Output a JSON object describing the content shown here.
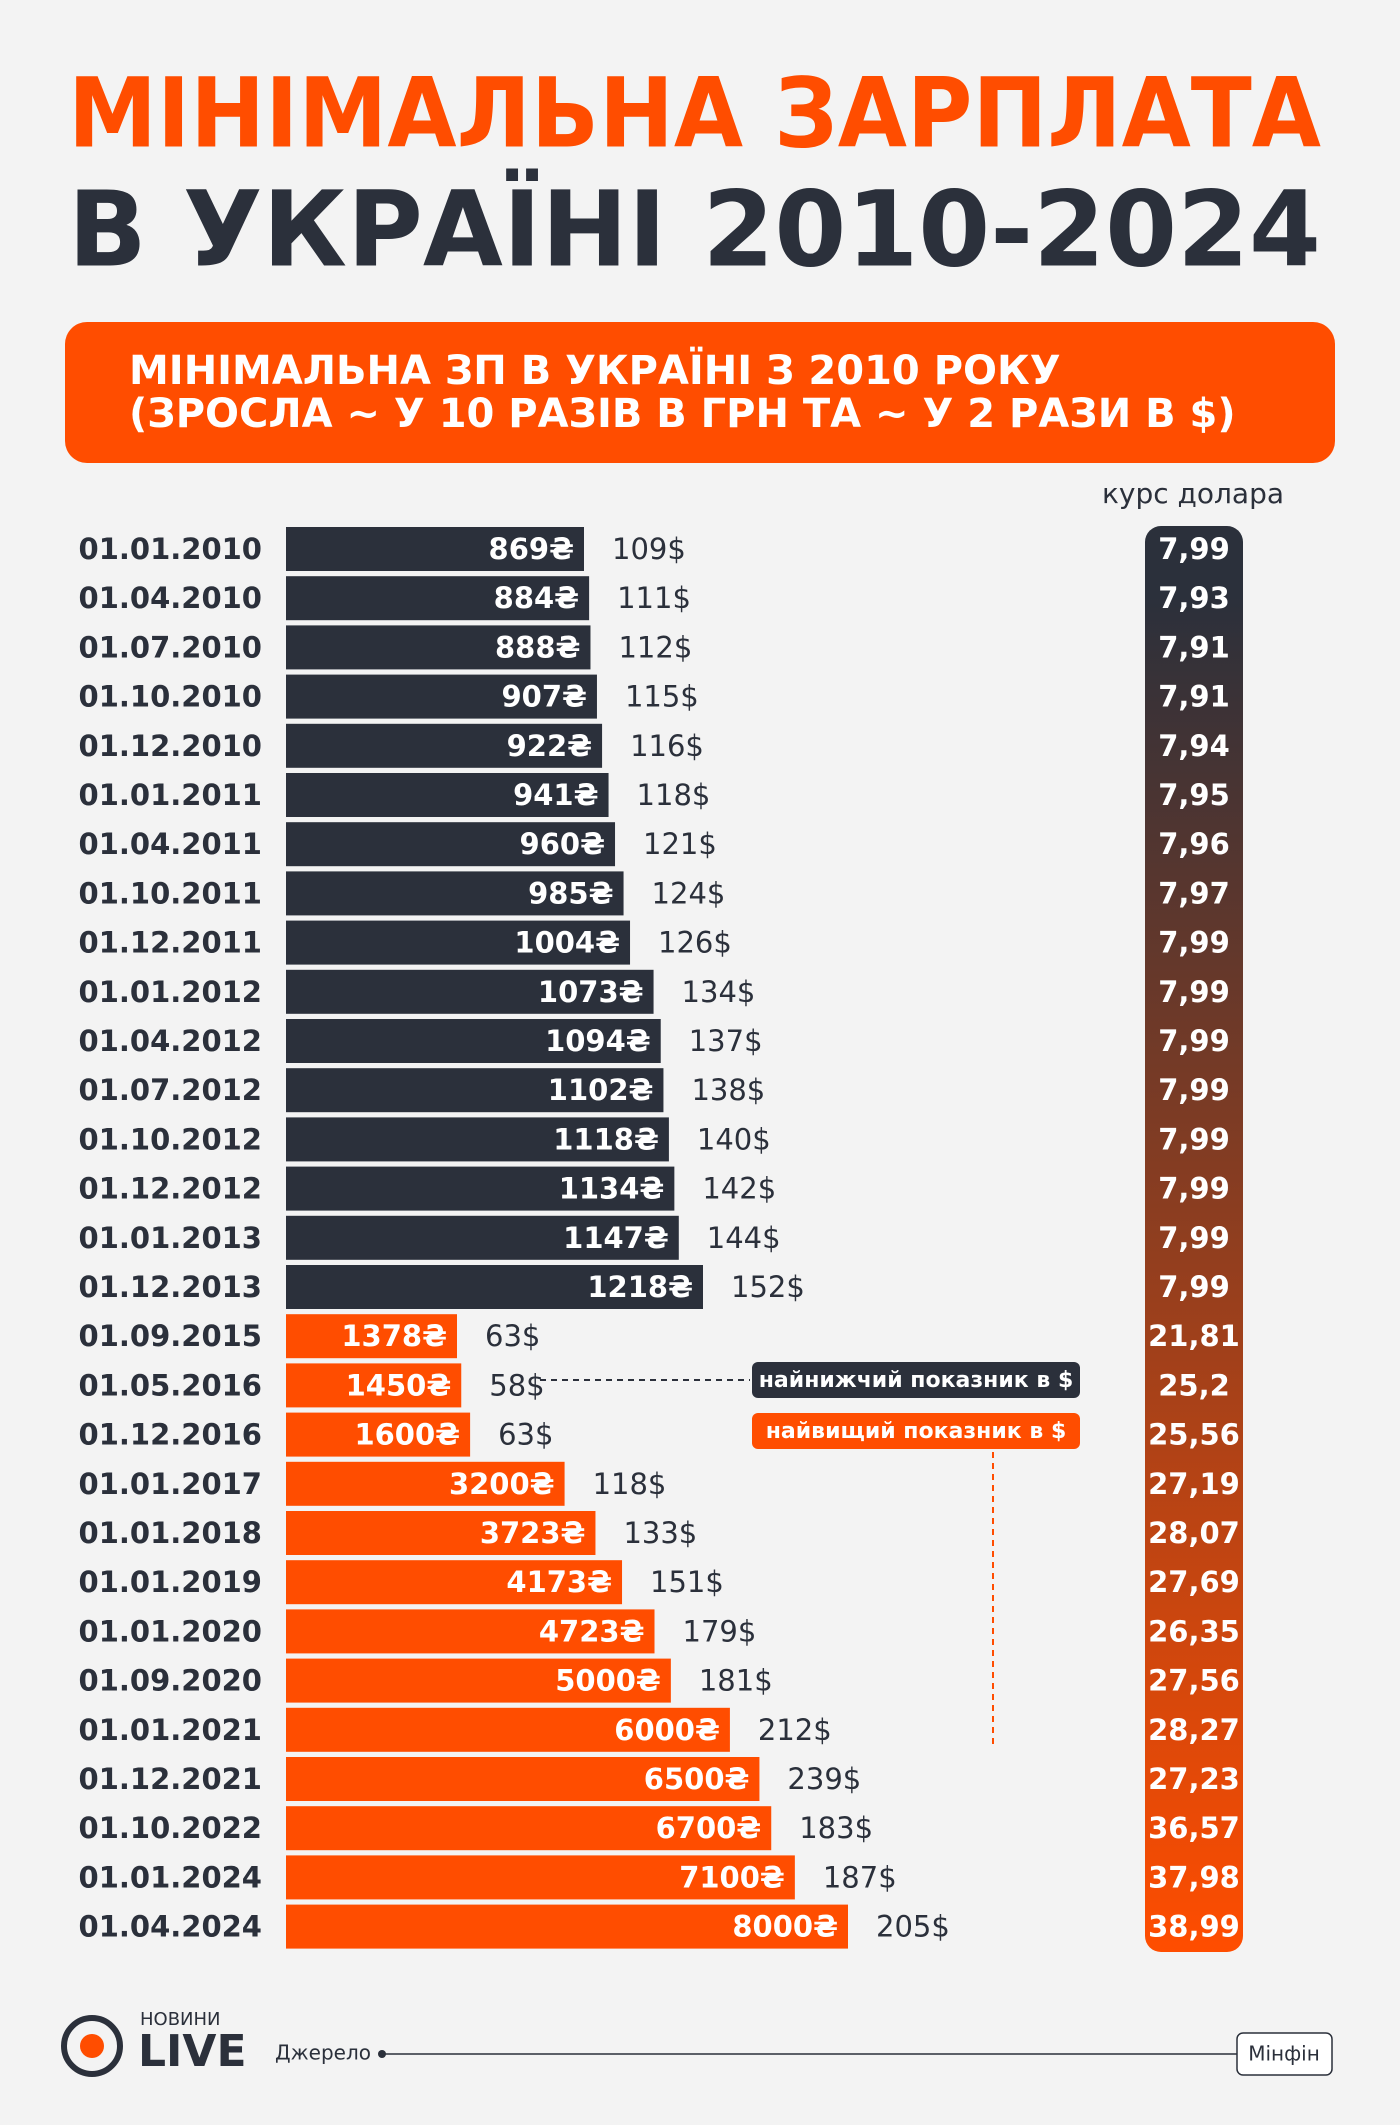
{
  "chart_data": {
    "type": "bar",
    "orientation": "horizontal",
    "title": [
      "МІНІМАЛЬНА ЗАРПЛАТА",
      "В УКРАЇНІ 2010-2024"
    ],
    "subtitle": [
      "МІНІМАЛЬНА ЗП В УКРАЇНІ З 2010 РОКУ",
      "(ЗРОСЛА ~ У 10 РАЗІВ В ГРН ТА ~ У 2 РАЗИ В $)"
    ],
    "categories": [
      "01.01.2010",
      "01.04.2010",
      "01.07.2010",
      "01.10.2010",
      "01.12.2010",
      "01.01.2011",
      "01.04.2011",
      "01.10.2011",
      "01.12.2011",
      "01.01.2012",
      "01.04.2012",
      "01.07.2012",
      "01.10.2012",
      "01.12.2012",
      "01.01.2013",
      "01.12.2013",
      "01.09.2015",
      "01.05.2016",
      "01.12.2016",
      "01.01.2017",
      "01.01.2018",
      "01.01.2019",
      "01.01.2020",
      "01.09.2020",
      "01.01.2021",
      "01.12.2021",
      "01.10.2022",
      "01.01.2024",
      "01.04.2024"
    ],
    "series": [
      {
        "color": "#2b303b",
        "values": [
          869,
          884,
          888,
          907,
          922,
          941,
          960,
          985,
          1004,
          1073,
          1094,
          1102,
          1118,
          1134,
          1147,
          1218,
          null,
          null,
          null,
          null,
          null,
          null,
          null,
          null,
          null,
          null,
          null,
          null,
          null
        ],
        "value_labels": [
          "869₴",
          "884₴",
          "888₴",
          "907₴",
          "922₴",
          "941₴",
          "960₴",
          "985₴",
          "1004₴",
          "1073₴",
          "1094₴",
          "1102₴",
          "1118₴",
          "1134₴",
          "1147₴",
          "1218₴",
          null,
          null,
          null,
          null,
          null,
          null,
          null,
          null,
          null,
          null,
          null,
          null,
          null
        ]
      },
      {
        "color": "#ff4d00",
        "values": [
          null,
          null,
          null,
          null,
          null,
          null,
          null,
          null,
          null,
          null,
          null,
          null,
          null,
          null,
          null,
          null,
          1378,
          1450,
          1600,
          3200,
          3723,
          4173,
          4723,
          5000,
          6000,
          6500,
          6700,
          7100,
          8000
        ],
        "value_labels": [
          null,
          null,
          null,
          null,
          null,
          null,
          null,
          null,
          null,
          null,
          null,
          null,
          null,
          null,
          null,
          null,
          "1378₴",
          "1450₴",
          "1600₴",
          "3200₴",
          "3723₴",
          "4173₴",
          "4723₴",
          "5000₴",
          "6000₴",
          "6500₴",
          "6700₴",
          "7100₴",
          "8000₴"
        ]
      }
    ],
    "usd": {
      "values": [
        109,
        111,
        112,
        115,
        116,
        118,
        121,
        124,
        126,
        134,
        137,
        138,
        140,
        142,
        144,
        152,
        63,
        58,
        63,
        118,
        133,
        151,
        179,
        181,
        212,
        239,
        183,
        187,
        205
      ],
      "value_labels": [
        "109$",
        "111$",
        "112$",
        "115$",
        "116$",
        "118$",
        "121$",
        "124$",
        "126$",
        "134$",
        "137$",
        "138$",
        "140$",
        "142$",
        "144$",
        "152$",
        "63$",
        "58$",
        "63$",
        "118$",
        "133$",
        "151$",
        "179$",
        "181$",
        "212$",
        "239$",
        "183$",
        "187$",
        "205$"
      ]
    },
    "rate": {
      "title": "курс долара",
      "values": [
        7.99,
        7.93,
        7.91,
        7.91,
        7.94,
        7.95,
        7.96,
        7.97,
        7.99,
        7.99,
        7.99,
        7.99,
        7.99,
        7.99,
        7.99,
        7.99,
        21.81,
        25.2,
        25.56,
        27.19,
        28.07,
        27.69,
        26.35,
        27.56,
        28.27,
        27.23,
        36.57,
        37.98,
        38.99
      ],
      "value_labels": [
        "7,99",
        "7,93",
        "7,91",
        "7,91",
        "7,94",
        "7,95",
        "7,96",
        "7,97",
        "7,99",
        "7,99",
        "7,99",
        "7,99",
        "7,99",
        "7,99",
        "7,99",
        "7,99",
        "21,81",
        "25,2",
        "25,56",
        "27,19",
        "28,07",
        "27,69",
        "26,35",
        "27,56",
        "28,27",
        "27,23",
        "36,57",
        "37,98",
        "38,99"
      ]
    },
    "annotations": [
      "найнижчий показник в $",
      "найвищий показник в $"
    ],
    "source": {
      "label": "Джерело",
      "value": "Мінфін"
    },
    "logo": [
      "НОВИНИ",
      "LIVE"
    ]
  }
}
